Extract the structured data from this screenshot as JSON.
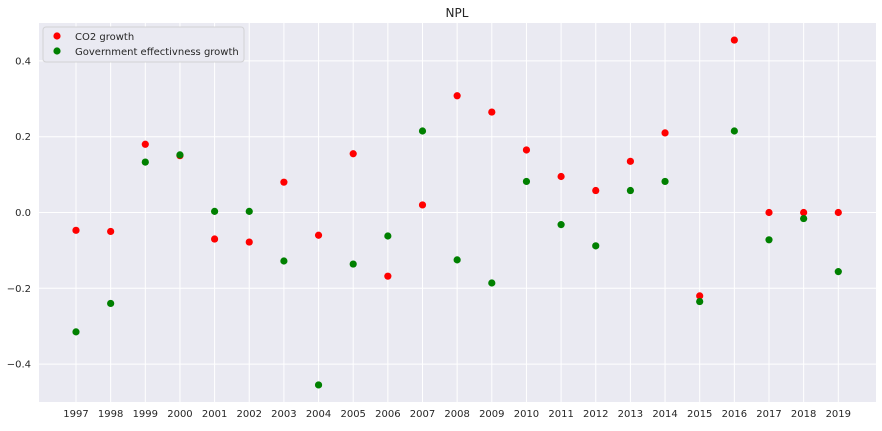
{
  "chart_data": {
    "type": "scatter",
    "title": "NPL",
    "xlabel": "",
    "ylabel": "",
    "categories": [
      "1997",
      "1998",
      "1999",
      "2000",
      "2001",
      "2002",
      "2003",
      "2004",
      "2005",
      "2006",
      "2007",
      "2008",
      "2009",
      "2010",
      "2011",
      "2012",
      "2013",
      "2014",
      "2015",
      "2016",
      "2017",
      "2018",
      "2019"
    ],
    "y_ticks": [
      "0.4",
      "0.2",
      "0.0",
      "−0.2",
      "−0.4"
    ],
    "y_tick_values": [
      0.4,
      0.2,
      0.0,
      -0.2,
      -0.4
    ],
    "ylim": [
      -0.5,
      0.5
    ],
    "grid": true,
    "legend_position": "top-left",
    "series": [
      {
        "name": "CO2 growth",
        "color": "#ff0000",
        "values": [
          -0.047,
          -0.05,
          0.18,
          0.15,
          -0.07,
          -0.078,
          0.08,
          -0.06,
          0.155,
          -0.168,
          0.02,
          0.308,
          0.265,
          0.165,
          0.095,
          0.058,
          0.135,
          0.21,
          -0.22,
          0.455,
          0.0,
          0.0,
          0.0
        ]
      },
      {
        "name": "Government effectivness growth",
        "color": "#008000",
        "values": [
          -0.315,
          -0.24,
          0.133,
          0.152,
          0.003,
          0.003,
          -0.128,
          -0.455,
          -0.136,
          -0.062,
          0.215,
          -0.125,
          -0.186,
          0.082,
          -0.032,
          -0.088,
          0.058,
          0.082,
          -0.235,
          0.215,
          -0.072,
          -0.016,
          -0.156
        ]
      }
    ]
  }
}
